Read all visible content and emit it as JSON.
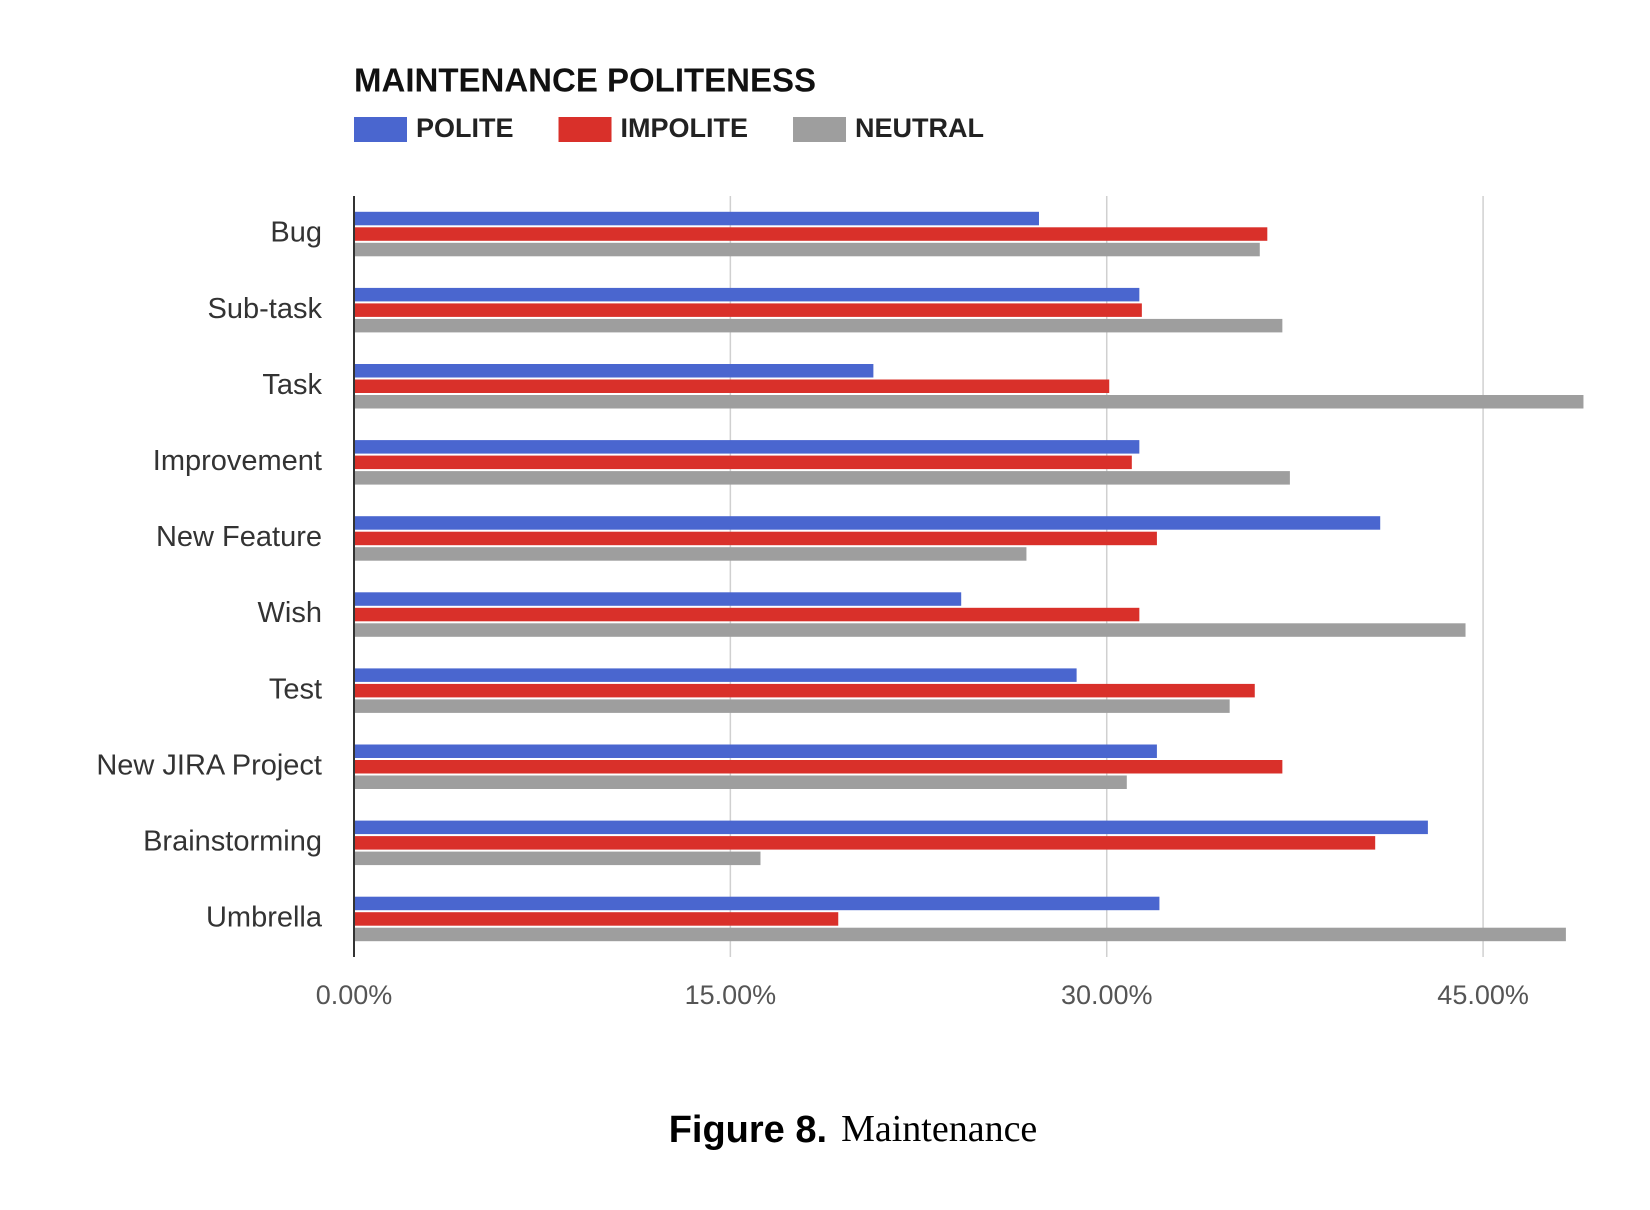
{
  "chart_data": {
    "type": "hbar",
    "title": "MAINTENANCE POLITENESS",
    "categories": [
      "Bug",
      "Sub-task",
      "Task",
      "Improvement",
      "New Feature",
      "Wish",
      "Test",
      "New JIRA Project",
      "Brainstorming",
      "Umbrella"
    ],
    "series": [
      {
        "name": "POLITE",
        "color": "#4a66cf",
        "values": [
          27.3,
          31.3,
          20.7,
          31.3,
          40.9,
          24.2,
          28.8,
          32.0,
          42.8,
          32.1
        ]
      },
      {
        "name": "IMPOLITE",
        "color": "#d9302a",
        "values": [
          36.4,
          31.4,
          30.1,
          31.0,
          32.0,
          31.3,
          35.9,
          37.0,
          40.7,
          19.3
        ]
      },
      {
        "name": "NEUTRAL",
        "color": "#9e9e9e",
        "values": [
          36.1,
          37.0,
          49.0,
          37.3,
          26.8,
          44.3,
          34.9,
          30.8,
          16.2,
          48.3
        ]
      }
    ],
    "xlim": [
      0,
      49.5
    ],
    "xticks": [
      {
        "value": 0,
        "label": "0.00%"
      },
      {
        "value": 15,
        "label": "15.00%"
      },
      {
        "value": 30,
        "label": "30.00%"
      },
      {
        "value": 45,
        "label": "45.00%"
      }
    ],
    "grid": true,
    "legend": "top"
  },
  "caption": {
    "label": "Figure 8.",
    "text": "Maintenance"
  }
}
